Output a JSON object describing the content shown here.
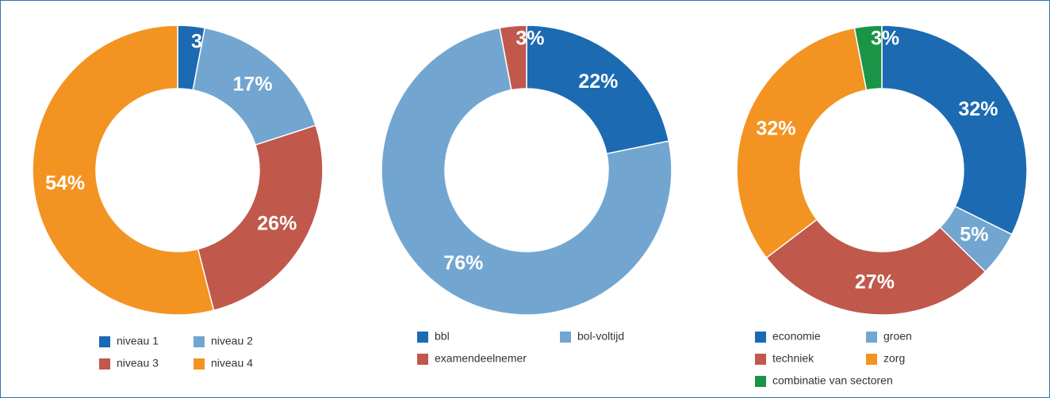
{
  "chart_data": [
    {
      "type": "pie",
      "categories": [
        "niveau 1",
        "niveau 2",
        "niveau 3",
        "niveau 4"
      ],
      "values": [
        3,
        17,
        26,
        54
      ],
      "value_labels": [
        "3%",
        "17%",
        "26%",
        "54%"
      ],
      "colors": [
        "#1c6ab1",
        "#72a6d1",
        "#c0584b",
        "#f39321"
      ]
    },
    {
      "type": "pie",
      "categories": [
        "bbl",
        "bol-voltijd",
        "examendeelnemer"
      ],
      "values": [
        22,
        76,
        3
      ],
      "value_labels": [
        "22%",
        "76%",
        "3%"
      ],
      "colors": [
        "#1c6ab1",
        "#72a6d1",
        "#c0584b"
      ]
    },
    {
      "type": "pie",
      "categories": [
        "economie",
        "groen",
        "techniek",
        "zorg",
        "combinatie van sectoren"
      ],
      "values": [
        32,
        5,
        27,
        32,
        3
      ],
      "value_labels": [
        "32%",
        "5%",
        "27%",
        "32%",
        "3%"
      ],
      "colors": [
        "#1c6ab1",
        "#72a6d1",
        "#c0584b",
        "#f39321",
        "#1a9446"
      ]
    }
  ]
}
